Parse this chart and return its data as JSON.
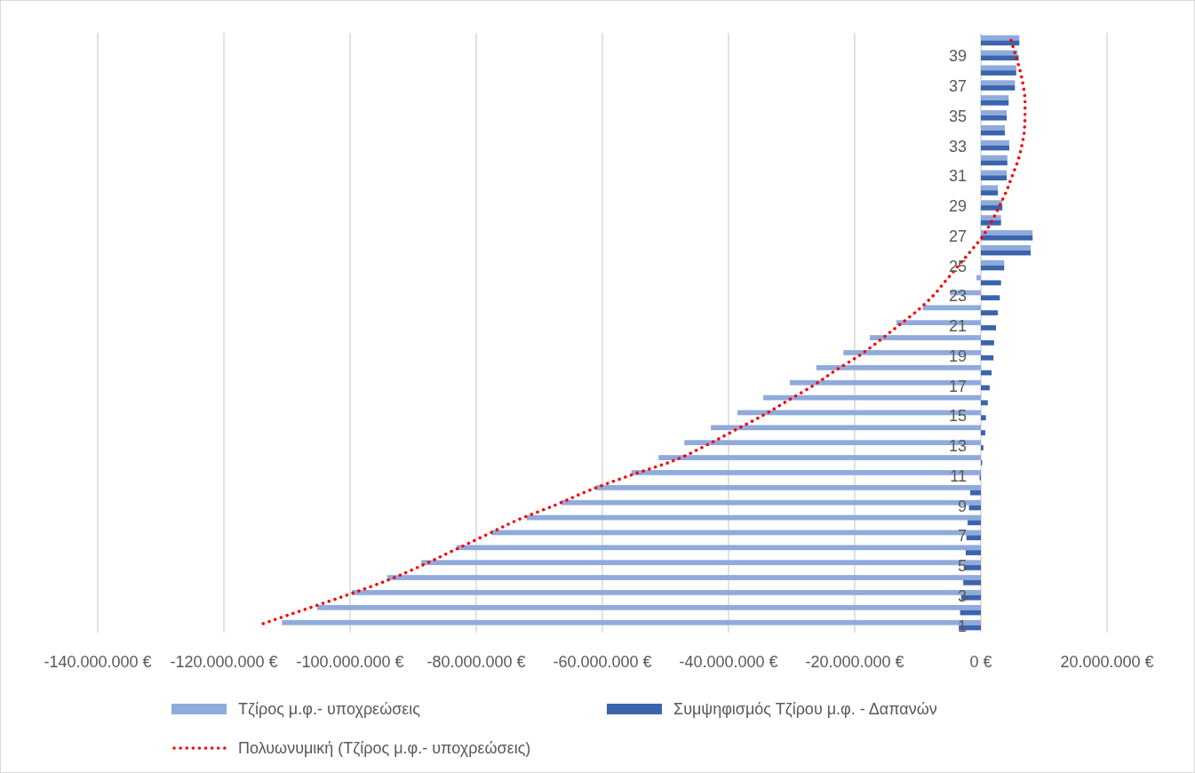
{
  "chart_data": {
    "type": "bar",
    "orientation": "horizontal",
    "categories": [
      null,
      "39",
      null,
      "37",
      null,
      "35",
      null,
      "33",
      null,
      "31",
      null,
      "29",
      null,
      "27",
      null,
      "25",
      null,
      "23",
      null,
      "21",
      null,
      "19",
      null,
      "17",
      null,
      "15",
      null,
      "13",
      null,
      "11",
      null,
      "9",
      null,
      "7",
      null,
      "5",
      null,
      "3",
      null,
      "1"
    ],
    "xlim": [
      -140000000,
      20000000
    ],
    "xticks": [
      {
        "value": -140000000,
        "label": "-140.000.000 €"
      },
      {
        "value": -120000000,
        "label": "-120.000.000 €"
      },
      {
        "value": -100000000,
        "label": "-100.000.000 €"
      },
      {
        "value": -80000000,
        "label": "-80.000.000 €"
      },
      {
        "value": -60000000,
        "label": "-60.000.000 €"
      },
      {
        "value": -40000000,
        "label": "-40.000.000 €"
      },
      {
        "value": -20000000,
        "label": "-20.000.000 €"
      },
      {
        "value": 0,
        "label": "0 €"
      },
      {
        "value": 20000000,
        "label": "20.000.000 €"
      }
    ],
    "grid": "x",
    "legend": "bottom",
    "series": [
      {
        "name": "Τζίρος μ.φ.- υποχρεώσεις",
        "color": "#8faadc",
        "values": [
          6100000,
          5800000,
          5600000,
          5400000,
          4400000,
          4100000,
          3800000,
          4500000,
          4200000,
          4100000,
          2700000,
          3400000,
          3200000,
          8200000,
          7900000,
          3700000,
          -700000,
          -4900000,
          -9200000,
          -13400000,
          -17600000,
          -21800000,
          -26100000,
          -30300000,
          -34500000,
          -38600000,
          -42800000,
          -47000000,
          -51100000,
          -55400000,
          -61000000,
          -66500000,
          -72000000,
          -77600000,
          -83100000,
          -88700000,
          -94100000,
          -99700000,
          -105200000,
          -110800000
        ]
      },
      {
        "name": "Συμψηφισμός Τζίρου μ.φ. - Δαπανών",
        "color": "#3b64ad",
        "values": [
          6100000,
          6000000,
          5600000,
          5400000,
          4400000,
          4100000,
          3800000,
          4500000,
          4200000,
          4100000,
          2700000,
          3400000,
          3200000,
          8200000,
          7900000,
          3700000,
          3200000,
          3000000,
          2700000,
          2400000,
          2100000,
          2000000,
          1700000,
          1400000,
          1100000,
          800000,
          700000,
          400000,
          200000,
          -200000,
          -1700000,
          -1900000,
          -2100000,
          -2300000,
          -2400000,
          -2700000,
          -2800000,
          -3100000,
          -3300000,
          -3500000
        ]
      },
      {
        "name": "Πολυωνυμική (Τζίρος μ.φ.- υποχρεώσεις)",
        "type": "line",
        "color": "#ff0000",
        "line_style": "dotted",
        "marker": "none",
        "values": [
          4800000,
          5500000,
          6200000,
          6700000,
          7000000,
          7000000,
          6900000,
          6500000,
          5900000,
          5000000,
          4100000,
          3000000,
          1800000,
          400000,
          -1500000,
          -3500000,
          -5500000,
          -7500000,
          -10000000,
          -13000000,
          -16000000,
          -19200000,
          -23000000,
          -26500000,
          -30500000,
          -34500000,
          -39000000,
          -43500000,
          -48500000,
          -55500000,
          -62000000,
          -67500000,
          -73500000,
          -78500000,
          -83500000,
          -88500000,
          -94000000,
          -100500000,
          -107500000,
          -114500000
        ]
      }
    ]
  }
}
